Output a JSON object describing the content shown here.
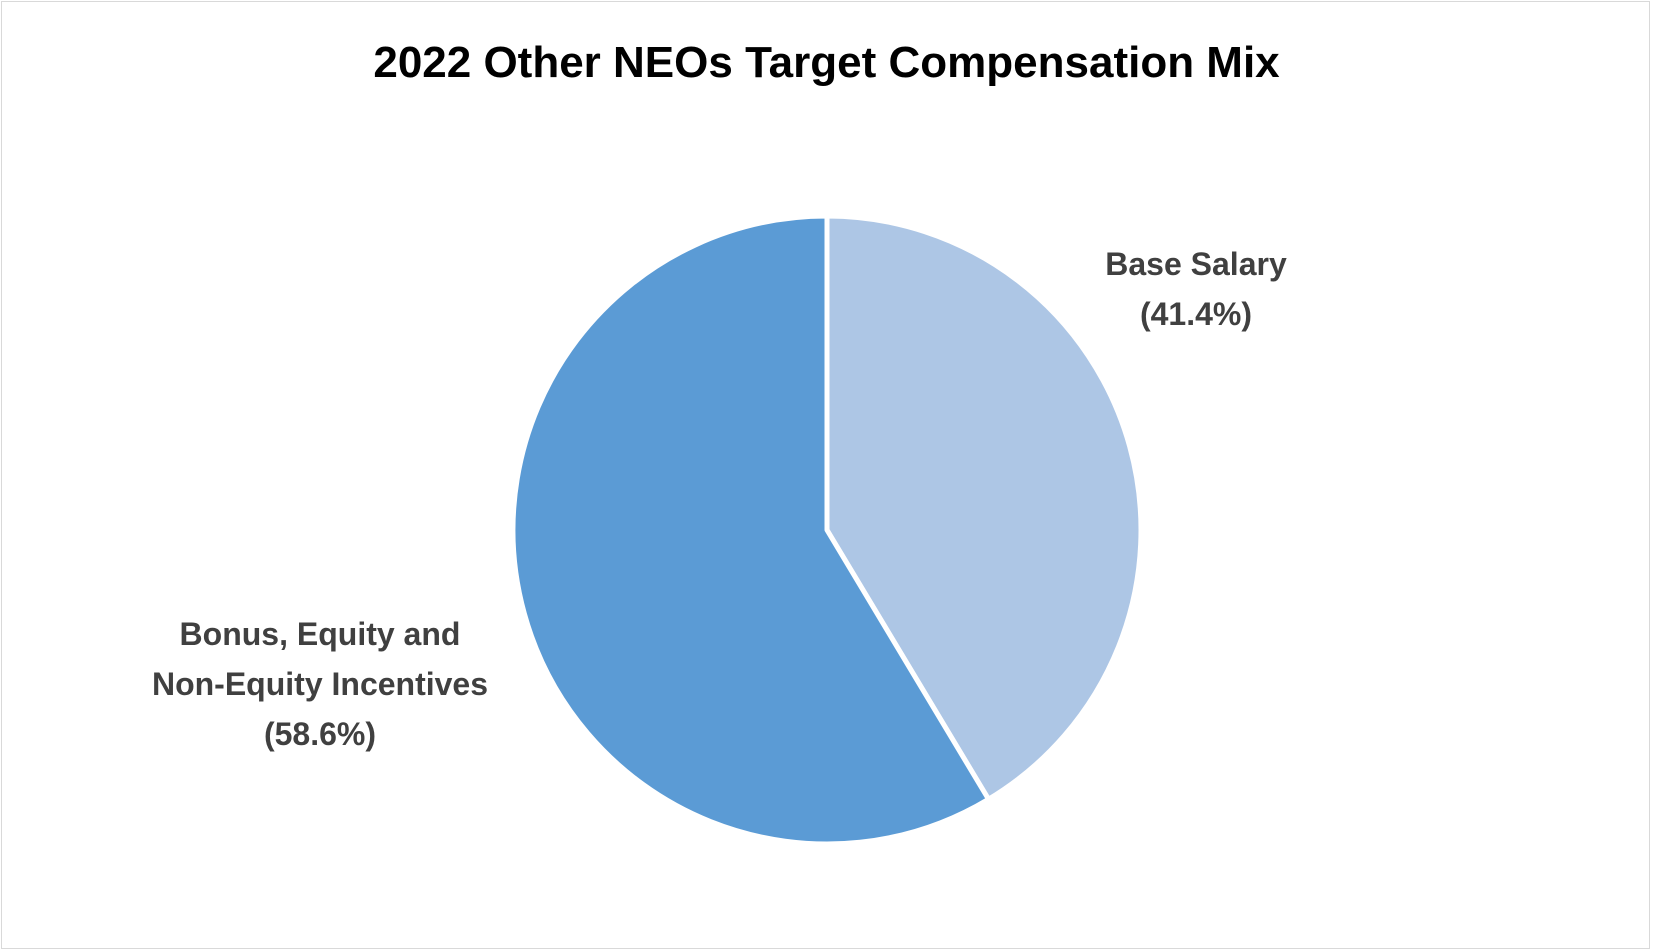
{
  "chart_data": {
    "type": "pie",
    "title": "2022 Other NEOs Target Compensation Mix",
    "slices": [
      {
        "label_lines": [
          "Base Salary",
          "(41.4%)"
        ],
        "value": 41.4,
        "color": "#adc6e5"
      },
      {
        "label_lines": [
          "Bonus, Equity and",
          "Non-Equity Incentives",
          "(58.6%)"
        ],
        "value": 58.6,
        "color": "#5b9bd5"
      }
    ]
  }
}
